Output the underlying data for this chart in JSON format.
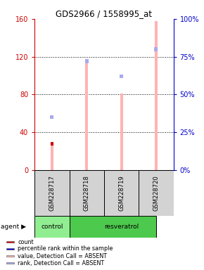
{
  "title": "GDS2966 / 1558995_at",
  "samples": [
    "GSM228717",
    "GSM228718",
    "GSM228719",
    "GSM228720"
  ],
  "ylim_left": [
    0,
    160
  ],
  "ylim_right": [
    0,
    100
  ],
  "yticks_left": [
    0,
    40,
    80,
    120,
    160
  ],
  "yticks_right": [
    0,
    25,
    50,
    75,
    100
  ],
  "yticklabels_left": [
    "0",
    "40",
    "80",
    "120",
    "160"
  ],
  "yticklabels_right": [
    "0%",
    "25%",
    "50%",
    "75%",
    "100%"
  ],
  "absent_value_values": [
    27,
    113,
    81,
    158
  ],
  "absent_rank_values": [
    35,
    72,
    62,
    80
  ],
  "count_values": [
    28,
    0,
    0,
    0
  ],
  "percentile_values": [
    0,
    0,
    0,
    0
  ],
  "count_color": "#cc0000",
  "percentile_color": "#0000cc",
  "absent_value_color": "#ffb3b3",
  "absent_rank_color": "#aaaaee",
  "legend_labels": [
    "count",
    "percentile rank within the sample",
    "value, Detection Call = ABSENT",
    "rank, Detection Call = ABSENT"
  ],
  "legend_colors": [
    "#cc0000",
    "#0000cc",
    "#ffb3b3",
    "#aaaaee"
  ],
  "green_light": "#90ee90",
  "green_dark": "#4dc94d",
  "gray_cell": "#d3d3d3",
  "left_axis_color": "#cc0000",
  "right_axis_color": "#0000cc"
}
